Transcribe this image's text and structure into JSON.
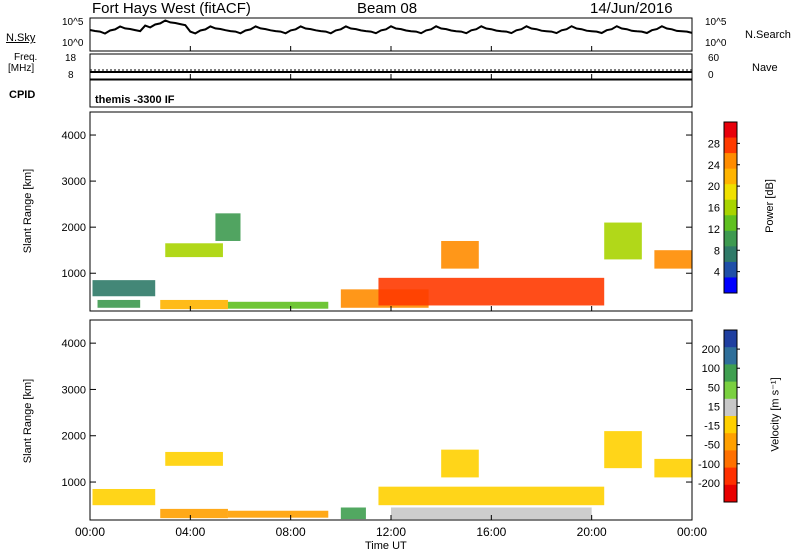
{
  "header": {
    "station": "Fort Hays West (fitACF)",
    "beam": "Beam 08",
    "date": "14/Jun/2016"
  },
  "top_panels": {
    "nsky_label": "N.Sky",
    "nsky_ticks": [
      "10^5",
      "10^0"
    ],
    "nsearch_label": "N.Search",
    "nsearch_ticks": [
      "10^5",
      "10^0"
    ],
    "freq_label": "Freq.",
    "freq_unit": "[MHz]",
    "freq_ticks": [
      "18",
      "8"
    ],
    "nave_label": "Nave",
    "nave_ticks": [
      "60",
      "0"
    ],
    "cpid_label": "CPID",
    "cpid_text": "themis -3300 IF"
  },
  "power_panel": {
    "ylabel": "Slant Range [km]",
    "colorbar_label": "Power [dB]",
    "colorbar_ticks": [
      "28",
      "24",
      "20",
      "16",
      "12",
      "8",
      "4"
    ],
    "colorbar_colors": [
      "#e8000b",
      "#ff3a00",
      "#ff8c00",
      "#ffb400",
      "#f0e000",
      "#a8d400",
      "#5fc020",
      "#3e9a50",
      "#2f7a68",
      "#1f4fa8",
      "#0000ff"
    ]
  },
  "velocity_panel": {
    "ylabel": "Slant Range [km]",
    "colorbar_label": "Velocity [m s⁻¹]",
    "colorbar_ticks": [
      "200",
      "100",
      "50",
      "15",
      "-15",
      "-50",
      "-100",
      "-200"
    ],
    "colorbar_colors": [
      "#1f3fa0",
      "#2f6f9a",
      "#3f9f50",
      "#7ad040",
      "#c8c8c8",
      "#ffd000",
      "#ffa000",
      "#ff7000",
      "#ff3000",
      "#e80000"
    ]
  },
  "x_axis": {
    "label": "Time UT",
    "ticks": [
      "00:00",
      "04:00",
      "08:00",
      "12:00",
      "16:00",
      "20:00",
      "00:00"
    ]
  },
  "chart_data": [
    {
      "type": "heatmap",
      "title": "Power [dB]",
      "xlabel": "Time UT",
      "ylabel": "Slant Range [km]",
      "x_range_hours": [
        0,
        24
      ],
      "ylim": [
        180,
        4500
      ],
      "y_ticks": [
        1000,
        2000,
        3000,
        4000
      ],
      "colorbar_range": [
        0,
        30
      ],
      "regions": [
        {
          "t0": 0.1,
          "t1": 2.6,
          "r0": 500,
          "r1": 850,
          "v": 8
        },
        {
          "t0": 0.3,
          "t1": 2.0,
          "r0": 250,
          "r1": 420,
          "v": 10
        },
        {
          "t0": 2.8,
          "t1": 5.5,
          "r0": 220,
          "r1": 420,
          "v": 20
        },
        {
          "t0": 3.0,
          "t1": 5.3,
          "r0": 1350,
          "r1": 1650,
          "v": 14
        },
        {
          "t0": 5.0,
          "t1": 6.0,
          "r0": 1700,
          "r1": 2300,
          "v": 10
        },
        {
          "t0": 5.5,
          "t1": 9.5,
          "r0": 230,
          "r1": 380,
          "v": 12
        },
        {
          "t0": 10.0,
          "t1": 13.5,
          "r0": 250,
          "r1": 650,
          "v": 22
        },
        {
          "t0": 11.5,
          "t1": 20.5,
          "r0": 300,
          "r1": 900,
          "v": 25
        },
        {
          "t0": 14.0,
          "t1": 15.5,
          "r0": 1100,
          "r1": 1700,
          "v": 22
        },
        {
          "t0": 20.5,
          "t1": 22.0,
          "r0": 1300,
          "r1": 2100,
          "v": 14
        },
        {
          "t0": 22.5,
          "t1": 24.0,
          "r0": 1100,
          "r1": 1500,
          "v": 22
        }
      ]
    },
    {
      "type": "heatmap",
      "title": "Velocity [m s⁻¹]",
      "xlabel": "Time UT",
      "ylabel": "Slant Range [km]",
      "x_range_hours": [
        0,
        24
      ],
      "ylim": [
        180,
        4500
      ],
      "y_ticks": [
        1000,
        2000,
        3000,
        4000
      ],
      "colorbar_range": [
        -200,
        200
      ],
      "regions": [
        {
          "t0": 0.1,
          "t1": 2.6,
          "r0": 500,
          "r1": 850,
          "v": 0
        },
        {
          "t0": 2.8,
          "t1": 5.5,
          "r0": 220,
          "r1": 420,
          "v": -60
        },
        {
          "t0": 3.0,
          "t1": 5.3,
          "r0": 1350,
          "r1": 1650,
          "v": 0
        },
        {
          "t0": 5.5,
          "t1": 9.5,
          "r0": 230,
          "r1": 380,
          "v": -40
        },
        {
          "t0": 10.0,
          "t1": 11.0,
          "r0": 200,
          "r1": 450,
          "v": 120
        },
        {
          "t0": 11.5,
          "t1": 20.5,
          "r0": 500,
          "r1": 900,
          "v": 0
        },
        {
          "t0": 12.0,
          "t1": 20.0,
          "r0": 200,
          "r1": 450,
          "v": 30
        },
        {
          "t0": 14.0,
          "t1": 15.5,
          "r0": 1100,
          "r1": 1700,
          "v": 0
        },
        {
          "t0": 20.5,
          "t1": 22.0,
          "r0": 1300,
          "r1": 2100,
          "v": 0
        },
        {
          "t0": 22.5,
          "t1": 24.0,
          "r0": 1100,
          "r1": 1500,
          "v": 0
        }
      ]
    }
  ]
}
